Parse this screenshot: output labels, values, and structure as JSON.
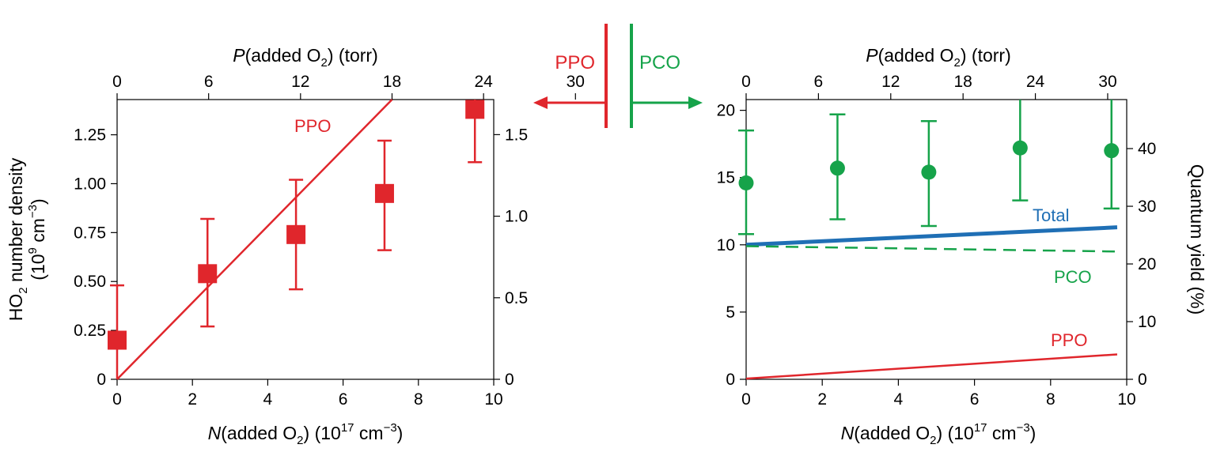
{
  "colors": {
    "red": "#e0262c",
    "green": "#16a34a",
    "blue": "#1f6fb5",
    "axis": "#000000"
  },
  "center": {
    "left_label": "PPO",
    "right_label": "PCO"
  },
  "chart_data": [
    {
      "type": "scatter",
      "bottom_axis": {
        "label_prefix": "N",
        "label_main": "(added O",
        "label_sub": "2",
        "label_rest": ")  (10",
        "label_sup": "17",
        "label_unit": " cm",
        "label_sup2": "−3",
        "label_close": ")",
        "ticks": [
          "0",
          "2",
          "4",
          "6",
          "8",
          "10"
        ],
        "range": [
          0,
          10
        ]
      },
      "top_axis": {
        "label_prefix": "P",
        "label_main": "(added O",
        "label_sub": "2",
        "label_rest": ") (torr)",
        "ticks": [
          "0",
          "6",
          "12",
          "18",
          "24",
          "30"
        ],
        "tick_positions": [
          0,
          2.43,
          4.87,
          7.3,
          9.73,
          12.17
        ]
      },
      "left_axis": {
        "label_line1": "HO",
        "label_line1_sub": "2",
        "label_line1_rest": " number density",
        "label_line2": "(10",
        "label_line2_sup": "9",
        "label_line2_unit": " cm",
        "label_line2_sup2": "−3",
        "label_line2_close": ")",
        "ticks": [
          "0",
          "0.25",
          "0.50",
          "0.75",
          "1.00",
          "1.25"
        ],
        "tick_values": [
          0,
          0.25,
          0.5,
          0.75,
          1.0,
          1.25
        ],
        "range": [
          0,
          1.43
        ]
      },
      "right_axis": {
        "ticks": [
          "0",
          "0.5",
          "1.0",
          "1.5"
        ],
        "tick_values": [
          0,
          0.5,
          1.0,
          1.5
        ],
        "range": [
          0,
          1.715
        ]
      },
      "series": [
        {
          "name": "PPO",
          "color": "#e0262c",
          "marker": "square",
          "x": [
            0,
            2.4,
            4.75,
            7.1,
            9.5
          ],
          "y": [
            0.2,
            0.54,
            0.74,
            0.95,
            1.38
          ],
          "err_low": [
            0.0,
            0.27,
            0.46,
            0.66,
            1.11
          ],
          "err_high": [
            0.48,
            0.82,
            1.02,
            1.22,
            1.45
          ]
        }
      ],
      "fit_line": {
        "label": "PPO",
        "x": [
          0,
          7.3
        ],
        "y": [
          0,
          1.43
        ]
      }
    },
    {
      "type": "line",
      "bottom_axis": {
        "label_prefix": "N",
        "label_main": "(added O",
        "label_sub": "2",
        "label_rest": ")  (10",
        "label_sup": "17",
        "label_unit": " cm",
        "label_sup2": "−3",
        "label_close": ")",
        "ticks": [
          "0",
          "2",
          "4",
          "6",
          "8",
          "10"
        ],
        "range": [
          0,
          10
        ]
      },
      "top_axis": {
        "label_prefix": "P",
        "label_main": "(added O",
        "label_sub": "2",
        "label_rest": ") (torr)",
        "ticks": [
          "0",
          "6",
          "12",
          "18",
          "24",
          "30"
        ],
        "tick_positions": [
          0,
          1.9,
          3.8,
          5.7,
          7.6,
          9.5
        ]
      },
      "left_axis": {
        "ticks": [
          "0",
          "5",
          "10",
          "15",
          "20"
        ],
        "tick_values": [
          0,
          5,
          10,
          15,
          20
        ],
        "range": [
          0,
          20.8
        ]
      },
      "right_axis": {
        "label": "Quantum yield (%)",
        "ticks": [
          "0",
          "10",
          "20",
          "30",
          "40"
        ],
        "tick_values": [
          0,
          10,
          20,
          30,
          40
        ],
        "range": [
          0,
          48.5
        ]
      },
      "series": [
        {
          "name": "PCO",
          "color": "#16a34a",
          "marker": "circle",
          "x": [
            0,
            2.4,
            4.8,
            7.2,
            9.6
          ],
          "y": [
            14.6,
            15.7,
            15.4,
            17.2,
            17.0
          ],
          "err_low": [
            10.8,
            11.9,
            11.4,
            13.3,
            12.7
          ],
          "err_high": [
            18.5,
            19.7,
            19.2,
            20.8,
            20.8
          ]
        }
      ],
      "lines": [
        {
          "name": "Total",
          "label": "Total",
          "color": "#1f6fb5",
          "style": "solid",
          "x": [
            0,
            9.75
          ],
          "y": [
            10.0,
            11.3
          ]
        },
        {
          "name": "PCO",
          "label": "PCO",
          "color": "#16a34a",
          "style": "dashed",
          "x": [
            0,
            9.75
          ],
          "y": [
            9.9,
            9.5
          ]
        },
        {
          "name": "PPO",
          "label": "PPO",
          "color": "#e0262c",
          "style": "solid",
          "x": [
            0,
            9.75
          ],
          "y": [
            0.05,
            1.85
          ]
        }
      ]
    }
  ]
}
